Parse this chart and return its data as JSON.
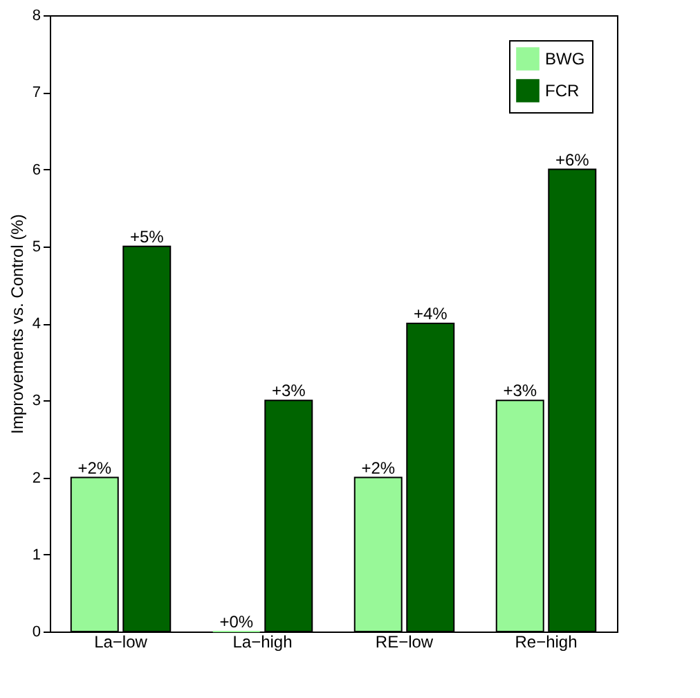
{
  "chart_data": {
    "type": "bar",
    "ylabel": "Improvements vs. Control (%)",
    "categories": [
      "La−low",
      "La−high",
      "RE−low",
      "Re−high"
    ],
    "series": [
      {
        "name": "BWG",
        "color": "#98f898",
        "values": [
          2,
          0,
          2,
          3
        ],
        "value_labels": [
          "+2%",
          "+0%",
          "+2%",
          "+3%"
        ]
      },
      {
        "name": "FCR",
        "color": "#006400",
        "values": [
          5,
          3,
          4,
          6
        ],
        "value_labels": [
          "+5%",
          "+3%",
          "+4%",
          "+6%"
        ]
      }
    ],
    "ylim": [
      0,
      8
    ],
    "yticks": [
      0,
      1,
      2,
      3,
      4,
      5,
      6,
      7,
      8
    ],
    "grid": false,
    "legend": "top right"
  }
}
